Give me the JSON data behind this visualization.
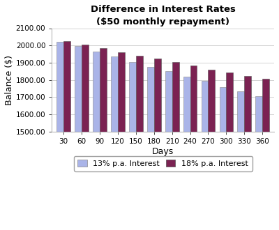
{
  "title_line1": "Difference in Interest Rates",
  "title_line2": "($50 monthly repayment)",
  "xlabel": "Days",
  "ylabel": "Balance ($)",
  "days": [
    30,
    60,
    90,
    120,
    150,
    180,
    210,
    240,
    270,
    300,
    330,
    360
  ],
  "series_13pct": [
    2020,
    1995,
    1965,
    1935,
    1905,
    1875,
    1850,
    1820,
    1795,
    1760,
    1735,
    1705
  ],
  "series_18pct": [
    2025,
    2005,
    1985,
    1962,
    1942,
    1925,
    1905,
    1882,
    1860,
    1842,
    1822,
    1805
  ],
  "color_13pct": "#aab4e8",
  "color_18pct": "#7b2252",
  "label_13pct": "13% p.a. Interest",
  "label_18pct": "18% p.a. Interest",
  "ylim_min": 1500,
  "ylim_max": 2100,
  "yticks": [
    1500,
    1600,
    1700,
    1800,
    1900,
    2000,
    2100
  ],
  "bg_color": "#ffffff",
  "plot_bg_color": "#ffffff",
  "grid_color": "#cccccc",
  "bar_width": 0.38
}
